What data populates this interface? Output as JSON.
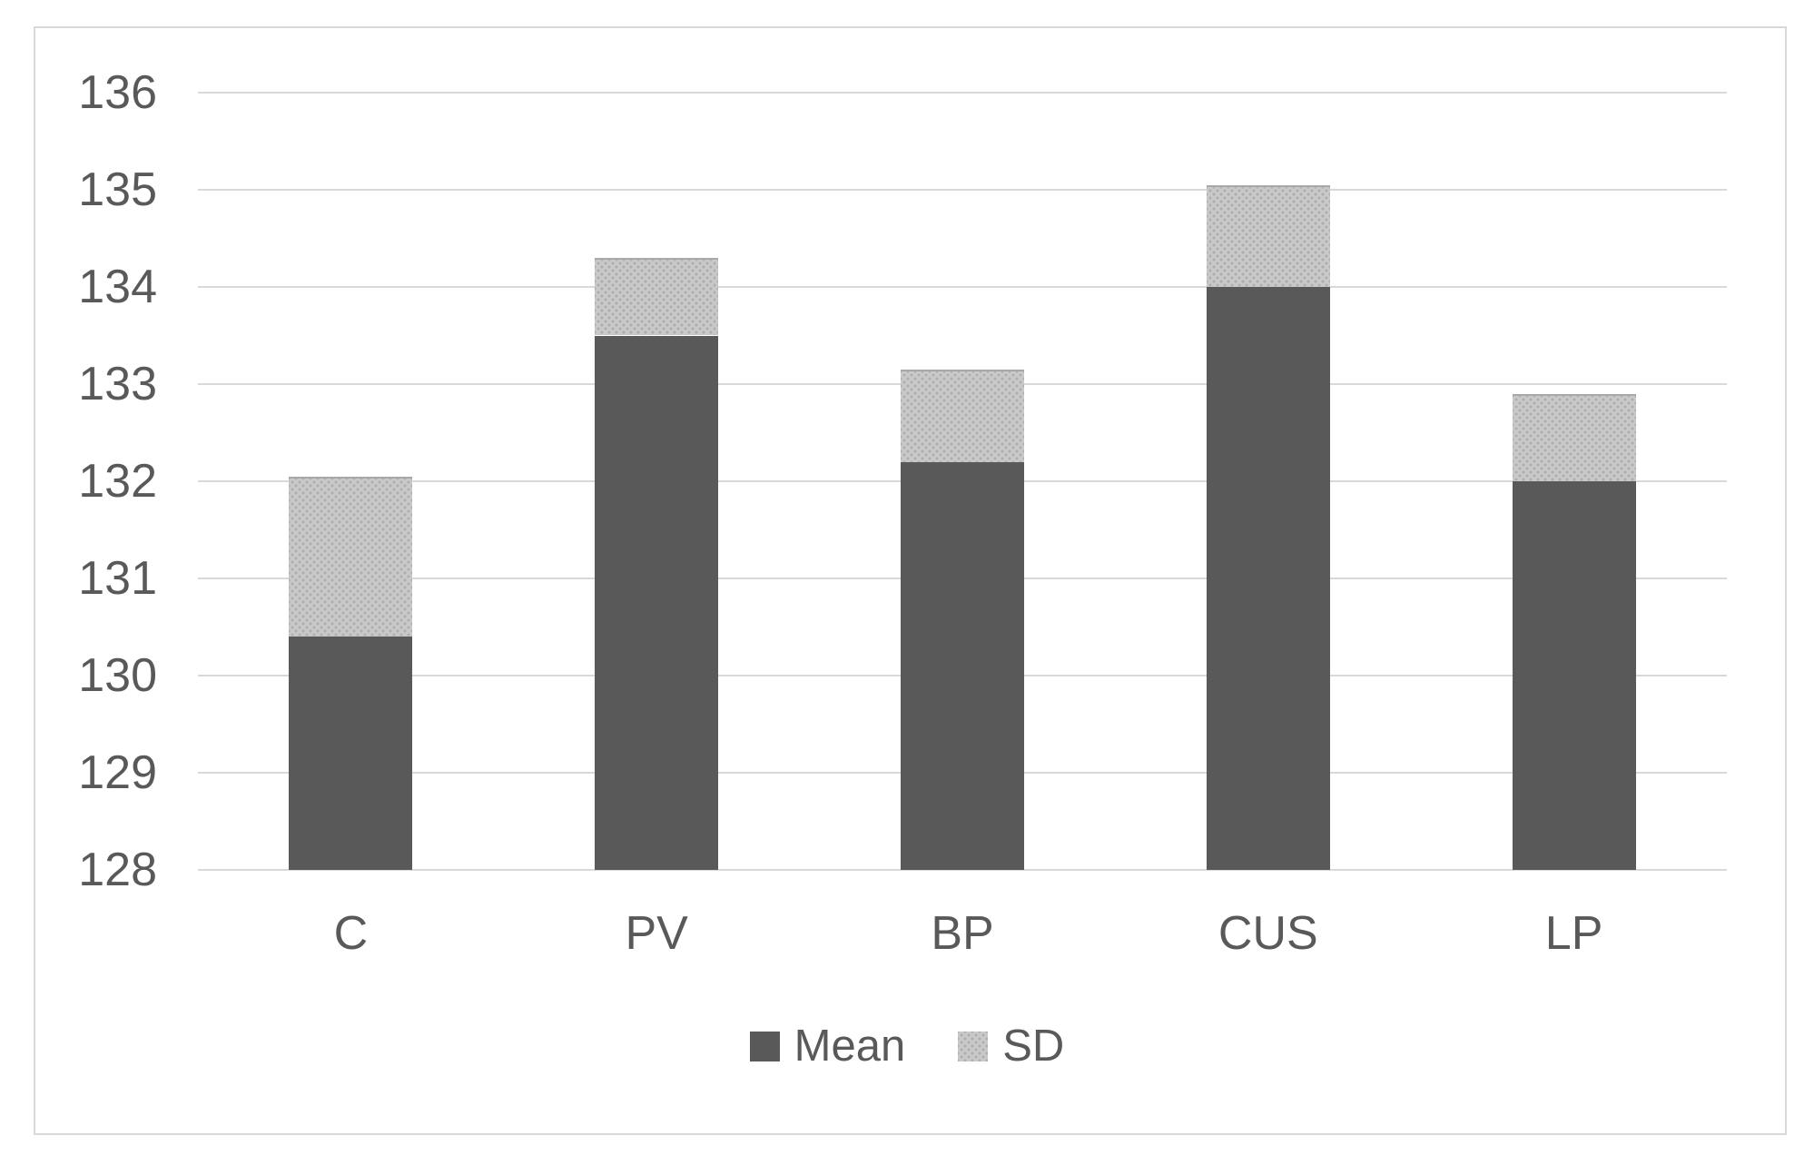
{
  "chart_data": {
    "type": "bar",
    "stacked": true,
    "title": "",
    "xlabel": "",
    "ylabel": "",
    "categories": [
      "C",
      "PV",
      "BP",
      "CUS",
      "LP"
    ],
    "series": [
      {
        "name": "Mean",
        "values": [
          130.4,
          133.5,
          132.2,
          134.0,
          132.0
        ]
      },
      {
        "name": "SD",
        "values": [
          1.65,
          0.8,
          0.95,
          1.05,
          0.9
        ]
      }
    ],
    "stack_top_values": [
      132.05,
      134.3,
      133.15,
      135.05,
      132.9
    ],
    "ylim": [
      128,
      136
    ],
    "yticks": [
      128,
      129,
      130,
      131,
      132,
      133,
      134,
      135,
      136
    ],
    "grid": true,
    "legend_position": "bottom"
  },
  "colors": {
    "mean_fill": "#595959",
    "sd_fill": "#c9c9c9",
    "sd_dot": "#b0b0b0",
    "sd_edge": "#a8a8a8",
    "gridline": "#d9d9d9",
    "axis_text": "#595959",
    "chart_border": "#d9d9d9",
    "background": "#ffffff"
  }
}
